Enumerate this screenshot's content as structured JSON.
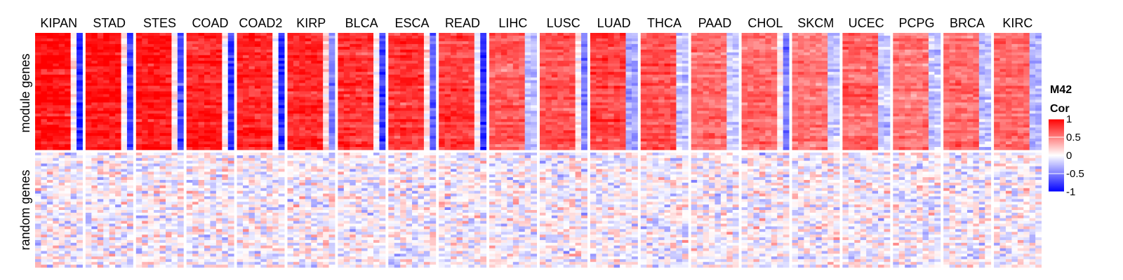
{
  "chart_data": {
    "type": "heatmap",
    "columns": [
      "KIPAN",
      "STAD",
      "STES",
      "COAD",
      "COAD2",
      "KIRP",
      "BLCA",
      "ESCA",
      "READ",
      "LIHC",
      "LUSC",
      "LUAD",
      "THCA",
      "PAAD",
      "CHOL",
      "SKCM",
      "UCEC",
      "PCPG",
      "BRCA",
      "KIRC"
    ],
    "row_groups": [
      {
        "name": "module genes",
        "mean_left": [
          0.95,
          0.9,
          0.9,
          0.88,
          0.85,
          0.85,
          0.8,
          0.8,
          0.75,
          0.65,
          0.7,
          0.72,
          0.7,
          0.55,
          0.6,
          0.55,
          0.6,
          0.55,
          0.55,
          0.6
        ],
        "mean_right": [
          -0.85,
          -0.8,
          -0.75,
          -0.8,
          -0.85,
          -0.5,
          -0.75,
          -0.6,
          -0.8,
          -0.25,
          -0.5,
          -0.35,
          -0.2,
          -0.2,
          -0.5,
          -0.2,
          -0.2,
          -0.2,
          -0.25,
          -0.3
        ]
      },
      {
        "name": "random genes",
        "mean_left": [
          0.05,
          0.05,
          0.05,
          0.05,
          0.05,
          0.05,
          0.05,
          0.05,
          0.05,
          0.05,
          0.05,
          0.05,
          0.05,
          0.05,
          0.05,
          0.05,
          0.05,
          0.05,
          0.05,
          0.05
        ],
        "mean_right": [
          0,
          0,
          0,
          0,
          0,
          0,
          0,
          0,
          0,
          0,
          0,
          0,
          0,
          0,
          0,
          0,
          0,
          0,
          0,
          0
        ]
      }
    ],
    "legend": {
      "title_line1": "M42",
      "title_line2": "Cor",
      "ticks": [
        "1",
        "0.5",
        "0",
        "-0.5",
        "-1"
      ],
      "tick_values": [
        1,
        0.5,
        0,
        -0.5,
        -1
      ],
      "range": [
        -1,
        1
      ],
      "colors": {
        "low": "#0000ff",
        "mid": "#ffffff",
        "high": "#ff0000"
      }
    },
    "legend_placement": "right"
  }
}
